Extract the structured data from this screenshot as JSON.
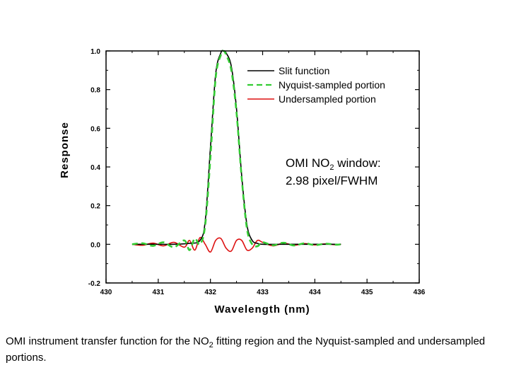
{
  "chart_data": {
    "type": "line",
    "xlabel": "Wavelength (nm)",
    "ylabel": "Response",
    "xlim": [
      430,
      436
    ],
    "ylim": [
      -0.2,
      1.0
    ],
    "x_ticks": [
      "430",
      "431",
      "432",
      "433",
      "434",
      "435",
      "436"
    ],
    "y_ticks": [
      "-0.2",
      "0.0",
      "0.2",
      "0.4",
      "0.6",
      "0.8",
      "1.0"
    ],
    "legend_position": "top-right",
    "series": [
      {
        "name": "Slit function",
        "color": "#000000",
        "style": "solid",
        "x": [
          430.5,
          430.9,
          431.3,
          431.6,
          431.8,
          431.9,
          432.0,
          432.1,
          432.2,
          432.25,
          432.3,
          432.4,
          432.5,
          432.6,
          432.7,
          432.8,
          432.9,
          433.0,
          433.4,
          433.8,
          434.2,
          434.5
        ],
        "y": [
          0.0,
          0.0,
          0.0,
          0.005,
          0.02,
          0.12,
          0.5,
          0.88,
          0.99,
          1.0,
          0.99,
          0.92,
          0.7,
          0.35,
          0.1,
          0.02,
          0.005,
          0.0,
          0.0,
          0.0,
          0.0,
          0.0
        ]
      },
      {
        "name": "Nyquist-sampled portion",
        "color": "#33cc33",
        "style": "dashed",
        "x": [
          430.5,
          430.7,
          430.9,
          431.1,
          431.3,
          431.5,
          431.6,
          431.7,
          431.8,
          431.9,
          432.0,
          432.1,
          432.2,
          432.25,
          432.3,
          432.4,
          432.5,
          432.6,
          432.7,
          432.8,
          432.9,
          433.0,
          433.2,
          433.4,
          433.6,
          433.8,
          434.0,
          434.2,
          434.4,
          434.5
        ],
        "y": [
          0.0,
          0.005,
          -0.008,
          0.01,
          -0.015,
          0.02,
          -0.03,
          0.03,
          0.0,
          0.1,
          0.45,
          0.86,
          0.98,
          1.0,
          0.98,
          0.9,
          0.68,
          0.34,
          0.08,
          0.0,
          -0.01,
          0.01,
          -0.005,
          0.008,
          -0.006,
          0.005,
          -0.004,
          0.003,
          -0.002,
          0.0
        ]
      },
      {
        "name": "Undersampled portion",
        "color": "#dd1111",
        "style": "solid",
        "x": [
          430.5,
          430.7,
          430.9,
          431.1,
          431.3,
          431.5,
          431.6,
          431.7,
          431.8,
          431.9,
          432.0,
          432.1,
          432.2,
          432.3,
          432.4,
          432.5,
          432.6,
          432.7,
          432.8,
          432.9,
          433.0,
          433.2,
          433.4,
          433.6,
          433.8,
          434.0,
          434.2,
          434.4,
          434.5
        ],
        "y": [
          0.0,
          -0.005,
          0.006,
          -0.008,
          0.01,
          -0.015,
          0.02,
          -0.03,
          0.035,
          0.0,
          -0.04,
          0.02,
          0.03,
          -0.02,
          -0.035,
          0.02,
          0.02,
          -0.03,
          -0.02,
          0.02,
          0.01,
          -0.008,
          0.006,
          -0.005,
          0.004,
          -0.003,
          0.002,
          -0.002,
          0.0
        ]
      }
    ],
    "annotation": {
      "line1_prefix": "OMI NO",
      "line1_sub": "2",
      "line1_suffix": " window:",
      "line2": "2.98 pixel/FWHM"
    }
  },
  "caption": {
    "part1": "OMI instrument transfer function for the NO",
    "sub": "2",
    "part2": " fitting region and the Nyquist-sampled and undersampled portions."
  }
}
